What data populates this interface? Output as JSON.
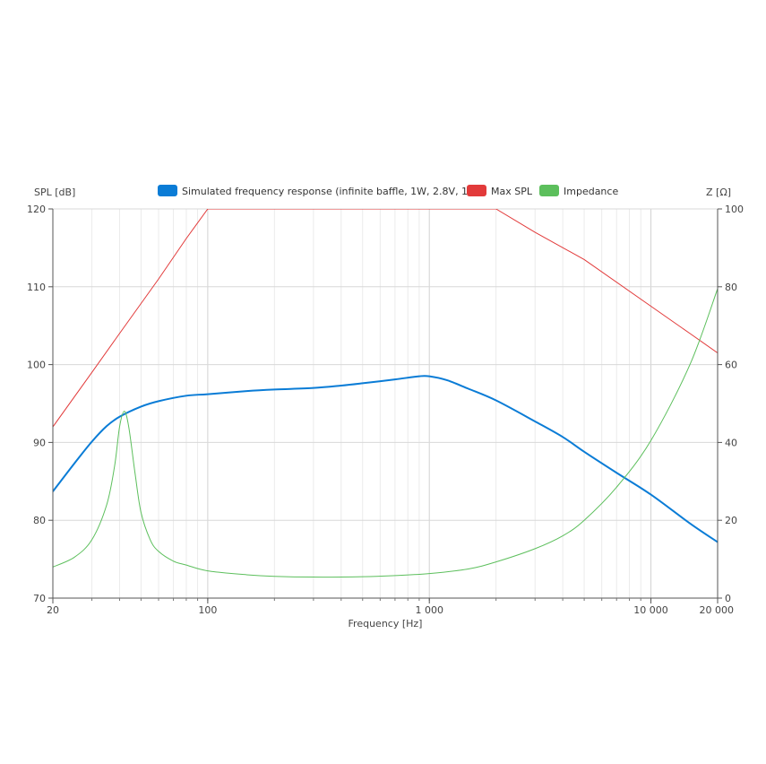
{
  "chart_data": {
    "type": "line",
    "x_scale": "log",
    "xlabel": "Frequency [Hz]",
    "ylabel_left": "SPL [dB]",
    "ylabel_right": "Z [Ω]",
    "xlim": [
      20,
      20000
    ],
    "ylim_left": [
      70,
      120
    ],
    "ylim_right": [
      0,
      100
    ],
    "x_ticks": [
      20,
      100,
      1000,
      10000,
      20000
    ],
    "x_tick_labels": [
      "20",
      "100",
      "1 000",
      "10 000",
      "20 000"
    ],
    "y_left_ticks": [
      70,
      80,
      90,
      100,
      110,
      120
    ],
    "y_left_tick_labels": [
      "70",
      "80",
      "90",
      "100",
      "110",
      "120"
    ],
    "y_right_ticks": [
      0,
      20,
      40,
      60,
      80,
      100
    ],
    "y_right_tick_labels": [
      "0",
      "20",
      "40",
      "60",
      "80",
      "100"
    ],
    "grid": true,
    "legend_position": "top",
    "series": [
      {
        "name": "Simulated frequency response (infinite baffle, 1W, 2.8V, 1m)",
        "color": "#0a7cd6",
        "axis": "left",
        "points": [
          [
            20,
            83.7
          ],
          [
            25,
            87.3
          ],
          [
            30,
            90.1
          ],
          [
            35,
            92.1
          ],
          [
            40,
            93.3
          ],
          [
            50,
            94.6
          ],
          [
            60,
            95.3
          ],
          [
            80,
            96.0
          ],
          [
            100,
            96.2
          ],
          [
            150,
            96.6
          ],
          [
            200,
            96.8
          ],
          [
            300,
            97.0
          ],
          [
            400,
            97.3
          ],
          [
            500,
            97.6
          ],
          [
            700,
            98.1
          ],
          [
            900,
            98.5
          ],
          [
            1000,
            98.5
          ],
          [
            1200,
            98.0
          ],
          [
            1500,
            96.9
          ],
          [
            2000,
            95.4
          ],
          [
            3000,
            92.7
          ],
          [
            4000,
            90.7
          ],
          [
            5000,
            88.8
          ],
          [
            7000,
            86.1
          ],
          [
            10000,
            83.3
          ],
          [
            15000,
            79.6
          ],
          [
            20000,
            77.2
          ]
        ]
      },
      {
        "name": "Max SPL",
        "color": "#e23a3a",
        "axis": "left",
        "points": [
          [
            20,
            92.0
          ],
          [
            30,
            99.0
          ],
          [
            40,
            104.0
          ],
          [
            60,
            111.0
          ],
          [
            80,
            116.2
          ],
          [
            100,
            120.0
          ],
          [
            2000,
            120.0
          ],
          [
            3000,
            117.0
          ],
          [
            5000,
            113.5
          ],
          [
            10000,
            107.5
          ],
          [
            15000,
            104.0
          ],
          [
            20000,
            101.5
          ]
        ]
      },
      {
        "name": "Impedance",
        "color": "#5cbf5c",
        "axis": "right",
        "points": [
          [
            20,
            8.0
          ],
          [
            25,
            10.5
          ],
          [
            30,
            15.0
          ],
          [
            35,
            24.0
          ],
          [
            38,
            34.0
          ],
          [
            40,
            44.0
          ],
          [
            42,
            48.0
          ],
          [
            44,
            44.0
          ],
          [
            47,
            32.0
          ],
          [
            50,
            22.0
          ],
          [
            55,
            15.0
          ],
          [
            60,
            12.0
          ],
          [
            70,
            9.5
          ],
          [
            80,
            8.5
          ],
          [
            100,
            7.0
          ],
          [
            150,
            6.0
          ],
          [
            200,
            5.6
          ],
          [
            300,
            5.4
          ],
          [
            500,
            5.5
          ],
          [
            700,
            5.8
          ],
          [
            1000,
            6.3
          ],
          [
            1500,
            7.5
          ],
          [
            2000,
            9.3
          ],
          [
            3000,
            12.7
          ],
          [
            4000,
            16.0
          ],
          [
            5000,
            20.0
          ],
          [
            7000,
            28.5
          ],
          [
            10000,
            40.5
          ],
          [
            15000,
            60.0
          ],
          [
            20000,
            79.5
          ]
        ]
      }
    ]
  }
}
